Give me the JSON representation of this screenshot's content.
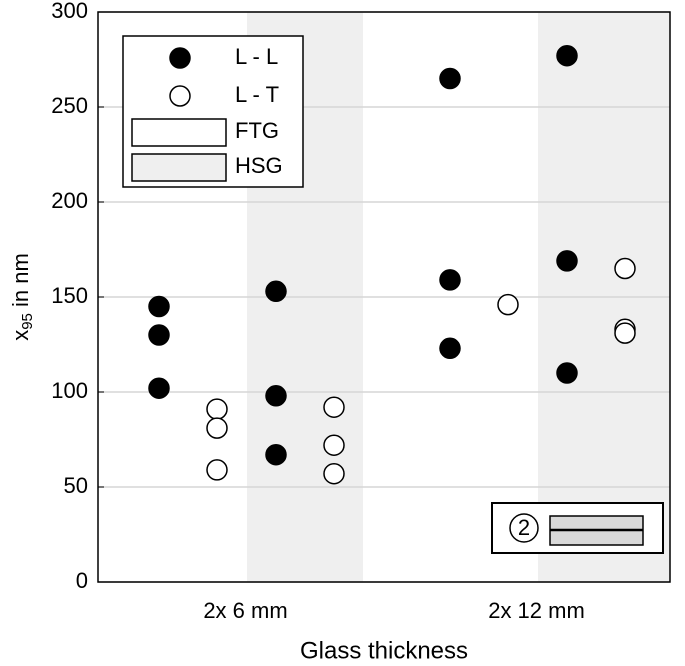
{
  "chart_data": {
    "type": "scatter",
    "y_label": "x",
    "y_label_sub": "95",
    "y_label_rest": " in nm",
    "x_label": "Glass thickness",
    "categories": [
      "2x 6 mm",
      "2x 12 mm"
    ],
    "regions": [
      {
        "name": "FTG",
        "color": "#ffffff"
      },
      {
        "name": "HSG",
        "color": "#efefef"
      }
    ],
    "series": [
      {
        "name": "L - L",
        "color": "#000000",
        "filled": true,
        "values": [
          [
            [
              145,
              130,
              102
            ],
            [
              153,
              98,
              67
            ]
          ],
          [
            [
              265,
              159,
              123
            ],
            [
              277,
              169,
              110
            ]
          ]
        ]
      },
      {
        "name": "L - T",
        "color": "#000000",
        "filled": false,
        "values": [
          [
            [
              91,
              81,
              59
            ],
            [
              92,
              72,
              57
            ]
          ],
          [
            [
              146
            ],
            [
              165,
              133,
              131
            ]
          ]
        ]
      }
    ],
    "ylim": [
      0,
      300
    ],
    "yticks": [
      0,
      50,
      100,
      150,
      200,
      250,
      300
    ],
    "grid": true,
    "legend": "upper left",
    "inset_label": "2"
  }
}
